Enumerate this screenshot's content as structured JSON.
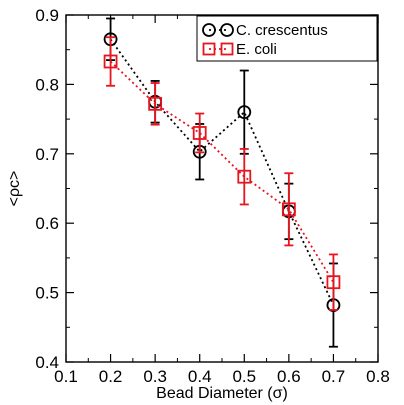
{
  "chart_data": {
    "type": "scatter",
    "title": "",
    "xlabel": "Bead Diameter (σ)",
    "ylabel": "<ρc>",
    "xlim": [
      0.1,
      0.8
    ],
    "ylim": [
      0.4,
      0.9
    ],
    "x_ticks": [
      "0.1",
      "0.2",
      "0.3",
      "0.4",
      "0.5",
      "0.6",
      "0.7",
      "0.8"
    ],
    "y_ticks": [
      "0.4",
      "0.5",
      "0.6",
      "0.7",
      "0.8",
      "0.9"
    ],
    "grid": false,
    "legend_position": "top-right",
    "series": [
      {
        "name": "C. crescentus",
        "color": "#000000",
        "marker": "circle",
        "line_style": "dotted",
        "x": [
          0.2,
          0.3,
          0.4,
          0.5,
          0.6,
          0.7
        ],
        "y": [
          0.865,
          0.775,
          0.703,
          0.76,
          0.617,
          0.482
        ],
        "err": [
          0.03,
          0.03,
          0.04,
          0.06,
          0.04,
          0.06
        ]
      },
      {
        "name": "E. coli",
        "color": "#e8141e",
        "marker": "square",
        "line_style": "dotted",
        "x": [
          0.2,
          0.3,
          0.4,
          0.5,
          0.6,
          0.7
        ],
        "y": [
          0.833,
          0.772,
          0.73,
          0.667,
          0.62,
          0.515
        ],
        "err": [
          0.035,
          0.03,
          0.028,
          0.04,
          0.052,
          0.04
        ]
      }
    ]
  }
}
